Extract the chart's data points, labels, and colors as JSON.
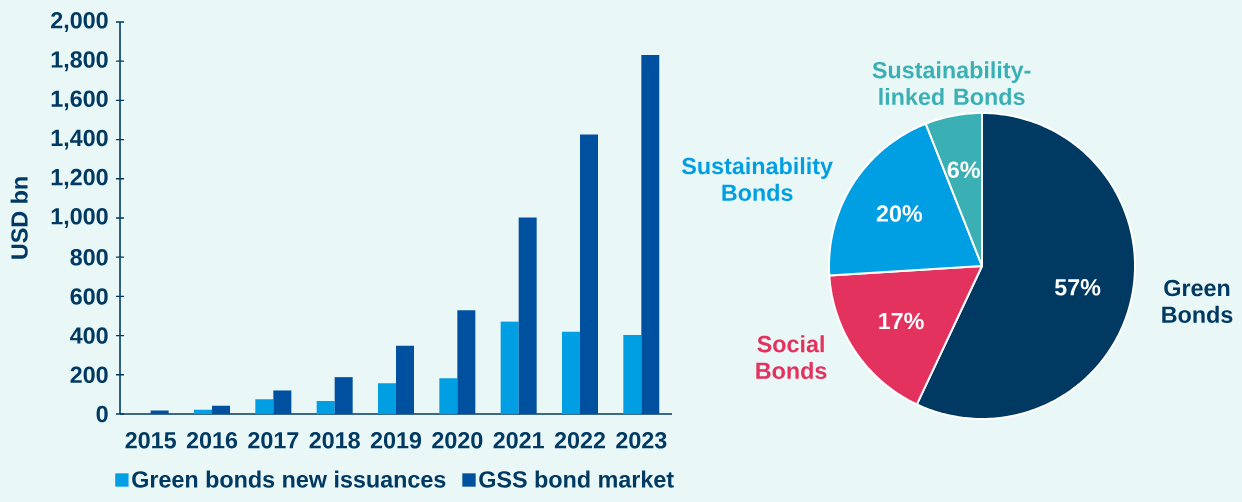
{
  "chart_data": [
    {
      "type": "bar",
      "ylabel": "USD bn",
      "categories": [
        "2015",
        "2016",
        "2017",
        "2018",
        "2019",
        "2020",
        "2021",
        "2022",
        "2023"
      ],
      "series": [
        {
          "name": "Green bonds new issuances",
          "color": "#009FE3",
          "values": [
            null,
            22,
            75,
            66,
            157,
            182,
            472,
            419,
            403
          ]
        },
        {
          "name": "GSS bond market",
          "color": "#0050A0",
          "values": [
            18,
            42,
            120,
            188,
            348,
            529,
            1003,
            1426,
            1831
          ]
        }
      ],
      "ylim": [
        0,
        2000
      ],
      "yticks": [
        0,
        200,
        400,
        600,
        800,
        {
          "value": 1000,
          "label": "1,000"
        },
        {
          "value": 1200,
          "label": "1,200"
        },
        {
          "value": 1400,
          "label": "1,400"
        },
        {
          "value": 1600,
          "label": "1,600"
        },
        {
          "value": 1800,
          "label": "1,800"
        },
        {
          "value": 2000,
          "label": "2,000"
        }
      ],
      "legend": "bottom"
    },
    {
      "type": "pie",
      "categories": [
        "Green Bonds",
        "Social Bonds",
        "Sustainability Bonds",
        "Sustainability-linked Bonds"
      ],
      "values": [
        57,
        17,
        20,
        6
      ],
      "colors": [
        "#003A63",
        "#E3325E",
        "#009FE3",
        "#3AB0B5"
      ],
      "value_labels": [
        "57%",
        "17%",
        "20%",
        "6%"
      ]
    }
  ]
}
